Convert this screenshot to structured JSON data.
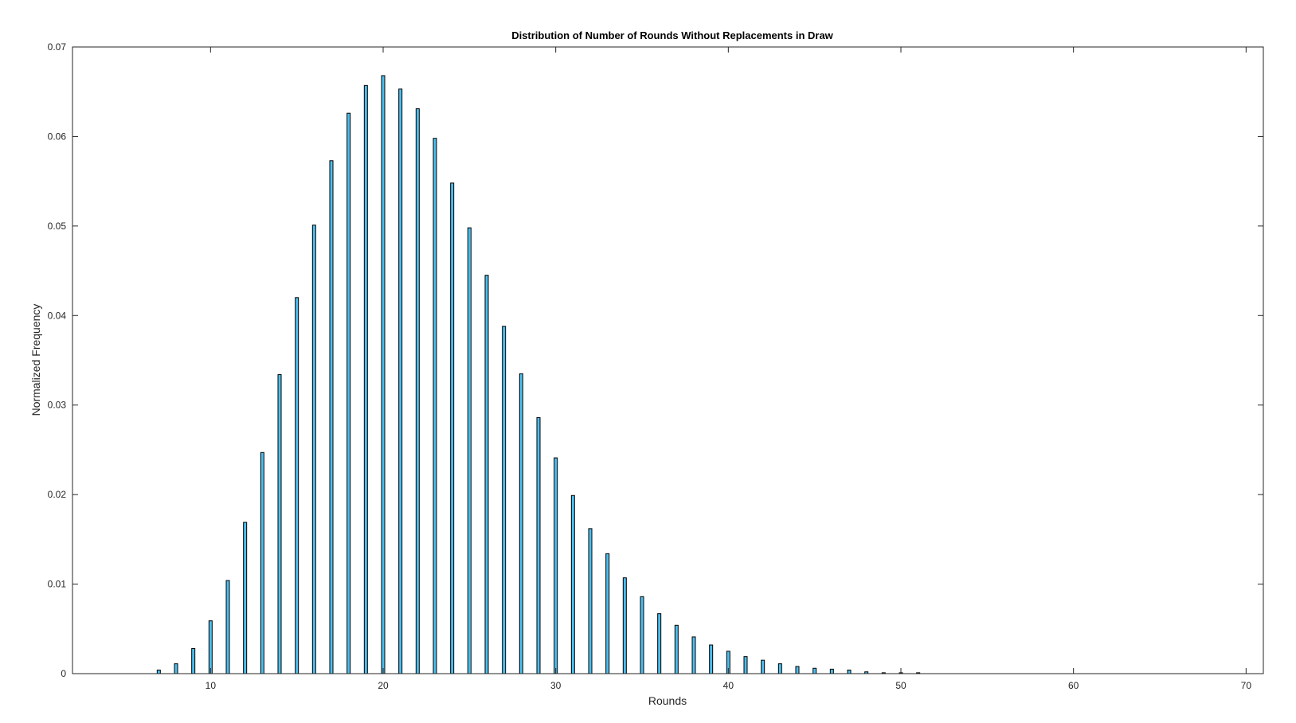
{
  "chart_data": {
    "type": "bar",
    "title": "Distribution of Number of Rounds Without Replacements in Draw",
    "xlabel": "Rounds",
    "ylabel": "Normalized Frequency",
    "xlim": [
      2,
      71
    ],
    "ylim": [
      0,
      0.07
    ],
    "xticks": [
      10,
      20,
      30,
      40,
      50,
      60,
      70
    ],
    "yticks": [
      0,
      0.01,
      0.02,
      0.03,
      0.04,
      0.05,
      0.06,
      0.07
    ],
    "ytick_labels": [
      "0",
      "0.01",
      "0.02",
      "0.03",
      "0.04",
      "0.05",
      "0.06",
      "0.07"
    ],
    "grid": false,
    "bar_color": "#4DBEEE",
    "edge_color": "#000000",
    "x": [
      7,
      8,
      9,
      10,
      11,
      12,
      13,
      14,
      15,
      16,
      17,
      18,
      19,
      20,
      21,
      22,
      23,
      24,
      25,
      26,
      27,
      28,
      29,
      30,
      31,
      32,
      33,
      34,
      35,
      36,
      37,
      38,
      39,
      40,
      41,
      42,
      43,
      44,
      45,
      46,
      47,
      48,
      49,
      50,
      51
    ],
    "values": [
      0.0004,
      0.0011,
      0.0028,
      0.0059,
      0.0104,
      0.0169,
      0.0247,
      0.0334,
      0.042,
      0.0501,
      0.0573,
      0.0626,
      0.0657,
      0.0668,
      0.0653,
      0.0631,
      0.0598,
      0.0548,
      0.0498,
      0.0445,
      0.0388,
      0.0335,
      0.0286,
      0.0241,
      0.0199,
      0.0162,
      0.0134,
      0.0107,
      0.0086,
      0.0067,
      0.0054,
      0.0041,
      0.0032,
      0.0025,
      0.0019,
      0.0015,
      0.0011,
      0.0008,
      0.0006,
      0.0005,
      0.0004,
      0.0002,
      0.0001,
      0.0001,
      0.0001
    ]
  }
}
